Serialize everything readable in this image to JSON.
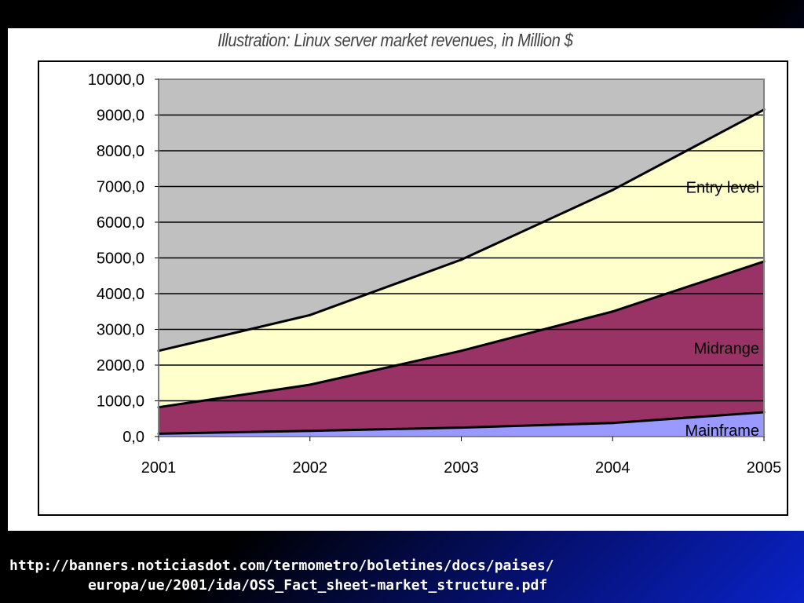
{
  "slide": {
    "source_url_line1": "http://banners.noticiasdot.com/termometro/boletines/docs/paises/",
    "source_url_line2": "europa/ue/2001/ida/OSS_Fact_sheet-market_structure.pdf"
  },
  "chart_data": {
    "type": "area",
    "stacked": false,
    "title": "Illustration: Linux server market revenues, in Million $",
    "xlabel": "",
    "ylabel": "",
    "x": [
      "2001",
      "2002",
      "2003",
      "2004",
      "2005"
    ],
    "ylim": [
      0,
      10000
    ],
    "yticks": [
      0,
      1000,
      2000,
      3000,
      4000,
      5000,
      6000,
      7000,
      8000,
      9000,
      10000
    ],
    "ytick_labels": [
      "0,0",
      "1000,0",
      "2000,0",
      "3000,0",
      "4000,0",
      "5000,0",
      "6000,0",
      "7000,0",
      "8000,0",
      "9000,0",
      "10000,0"
    ],
    "grid": true,
    "legend": "inline labels at right",
    "series": [
      {
        "name": "Entry level",
        "values": [
          2400,
          3400,
          4950,
          6900,
          9150
        ],
        "color": "#ffffcc"
      },
      {
        "name": "Midrange",
        "values": [
          820,
          1450,
          2400,
          3500,
          4900
        ],
        "color": "#993366"
      },
      {
        "name": "Mainframe",
        "values": [
          80,
          160,
          250,
          380,
          680
        ],
        "color": "#9999ff"
      }
    ],
    "plot_background": "#c0c0c0"
  }
}
